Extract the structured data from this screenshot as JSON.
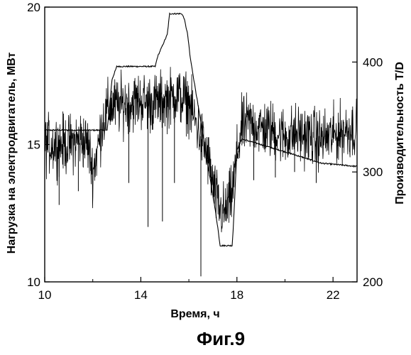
{
  "chart_data": {
    "type": "line",
    "caption": "Фиг.9",
    "xlabel": "Время, ч",
    "ylabel_left": "Нагрузка на электродвигатель, МВт",
    "ylabel_right": "Производительность T/D",
    "xlim": [
      10,
      23
    ],
    "ylim_left": [
      10,
      20
    ],
    "ylim_right": [
      200,
      450
    ],
    "xticks": [
      10,
      14,
      18,
      22
    ],
    "xtick_labels": [
      "10",
      "14",
      "18",
      "22"
    ],
    "yticks_left": [
      10,
      15,
      20
    ],
    "ytick_labels_left": [
      "10",
      "15",
      "20"
    ],
    "yticks_right": [
      200,
      300,
      400
    ],
    "ytick_labels_right": [
      "200",
      "300",
      "400"
    ],
    "grid": false,
    "legend": "none",
    "series": [
      {
        "axis": "right",
        "style": "step",
        "x": [
          10.0,
          12.6,
          12.8,
          13.0,
          14.0,
          14.6,
          14.7,
          14.8,
          15.1,
          15.2,
          15.7,
          15.8,
          15.95,
          16.05,
          16.2,
          16.35,
          16.5,
          16.65,
          16.8,
          16.95,
          17.1,
          17.2,
          17.3,
          17.5,
          17.8,
          17.85,
          18.0,
          18.2,
          19.0,
          20.5,
          21.5,
          23.0
        ],
        "values": [
          338,
          338,
          384,
          396,
          396,
          396,
          405,
          410,
          425,
          444,
          444,
          440,
          425,
          405,
          385,
          365,
          345,
          325,
          305,
          285,
          265,
          250,
          233,
          233,
          233,
          250,
          320,
          330,
          325,
          315,
          308,
          305
        ]
      },
      {
        "axis": "left",
        "style": "noisy",
        "x": [
          10.0,
          10.5,
          11.0,
          11.5,
          11.8,
          12.0,
          12.2,
          12.4,
          12.6,
          12.8,
          13.0,
          13.5,
          14.0,
          14.5,
          15.0,
          15.5,
          16.0,
          16.2,
          16.5,
          16.8,
          17.0,
          17.3,
          17.5,
          17.8,
          18.0,
          18.2,
          18.5,
          19.0,
          19.5,
          20.0,
          20.5,
          21.0,
          21.5,
          22.0,
          22.5,
          23.0
        ],
        "values": [
          15.0,
          15.0,
          15.0,
          15.2,
          15.0,
          14.0,
          14.8,
          15.8,
          16.2,
          16.4,
          16.4,
          16.5,
          16.6,
          16.5,
          16.6,
          16.8,
          16.5,
          16.0,
          15.3,
          14.5,
          13.5,
          12.6,
          12.5,
          13.2,
          14.6,
          15.6,
          15.8,
          15.6,
          15.5,
          15.3,
          15.4,
          15.3,
          15.2,
          15.3,
          15.5,
          15.6
        ]
      }
    ],
    "spikes_down": [
      {
        "x": 10.6,
        "value": 12.8
      },
      {
        "x": 11.4,
        "value": 13.3
      },
      {
        "x": 13.5,
        "value": 13.6
      },
      {
        "x": 14.3,
        "value": 12.0
      },
      {
        "x": 14.9,
        "value": 12.2
      },
      {
        "x": 15.4,
        "value": 13.6
      },
      {
        "x": 16.5,
        "value": 10.2
      },
      {
        "x": 18.7,
        "value": 13.7
      },
      {
        "x": 19.6,
        "value": 13.8
      },
      {
        "x": 20.4,
        "value": 14.0
      },
      {
        "x": 21.3,
        "value": 13.6
      }
    ]
  }
}
